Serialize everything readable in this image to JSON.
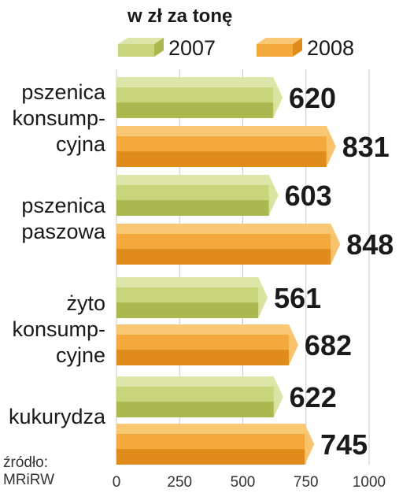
{
  "chart_data": {
    "type": "bar",
    "orientation": "horizontal",
    "unit_label": "w zł za tonę",
    "categories": [
      [
        "pszenica",
        "konsump-",
        "cyjna"
      ],
      [
        "pszenica",
        "paszowa"
      ],
      [
        "żyto",
        "konsump-",
        "cyjne"
      ],
      [
        "kukurydza"
      ]
    ],
    "series": [
      {
        "name": "2007",
        "values": [
          620,
          603,
          561,
          622
        ]
      },
      {
        "name": "2008",
        "values": [
          831,
          848,
          682,
          745
        ]
      }
    ],
    "xlim": [
      0,
      1000
    ],
    "xticks": [
      0,
      250,
      500,
      750,
      1000
    ],
    "grid": true,
    "legend_position": "top",
    "source": [
      "źródło:",
      "MRiRW"
    ]
  },
  "colors": {
    "series_2007": {
      "front": "#c9d57a",
      "top": "#dde6a8",
      "bottom": "#aab84f"
    },
    "series_2008": {
      "front": "#f4a93c",
      "top": "#f8c875",
      "bottom": "#e08c1c"
    },
    "grid": "#c8c8c8",
    "background": "#ffffff"
  }
}
